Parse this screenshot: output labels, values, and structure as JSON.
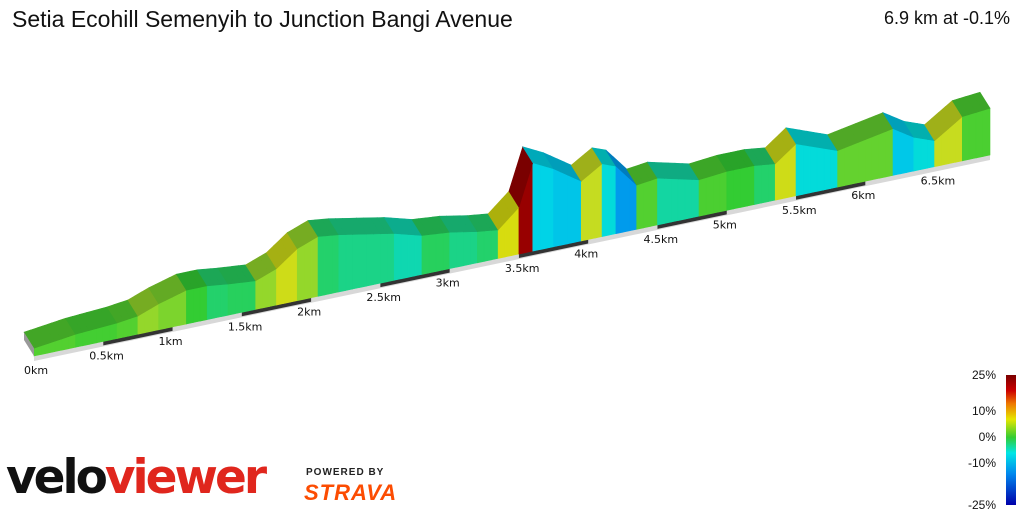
{
  "header": {
    "title": "Setia Ecohill Semenyih to Junction Bangi Avenue",
    "summary": "6.9 km at -0.1%"
  },
  "chart_data": {
    "type": "area",
    "title": "Setia Ecohill Semenyih to Junction Bangi Avenue",
    "distance_km": 6.9,
    "average_grade_percent": -0.1,
    "x_unit": "km",
    "tick_labels": [
      "0km",
      "0.5km",
      "1km",
      "1.5km",
      "2km",
      "2.5km",
      "3km",
      "3.5km",
      "4km",
      "4.5km",
      "5km",
      "5.5km",
      "6km",
      "6.5km"
    ],
    "tick_values": [
      0,
      0.5,
      1,
      1.5,
      2,
      2.5,
      3,
      3.5,
      4,
      4.5,
      5,
      5.5,
      6,
      6.5
    ],
    "series": [
      {
        "x": [
          0,
          0.3,
          0.6,
          0.75,
          0.9,
          1.1,
          1.25,
          1.4,
          1.6,
          1.75,
          1.9,
          2.05,
          2.2,
          2.4,
          2.6,
          2.8,
          3.0,
          3.2,
          3.35,
          3.5,
          3.6,
          3.75,
          3.95,
          4.1,
          4.2,
          4.35,
          4.5,
          4.65,
          4.8,
          5.0,
          5.2,
          5.35,
          5.5,
          5.65,
          5.8,
          6.0,
          6.2,
          6.35,
          6.5,
          6.7,
          6.9
        ],
        "y": [
          3,
          5,
          6,
          7,
          10,
          13,
          13,
          12,
          11,
          14,
          20,
          23,
          22,
          20,
          18,
          15,
          14,
          12,
          11,
          18,
          34,
          30,
          23,
          28,
          26,
          17,
          18,
          16,
          14,
          15,
          15,
          14,
          20,
          17,
          14,
          16,
          18,
          13,
          10,
          17,
          18
        ]
      }
    ],
    "grade_scale": {
      "labels": [
        "25%",
        "10%",
        "0%",
        "-10%",
        "-25%"
      ],
      "values": [
        25,
        10,
        0,
        -10,
        -25
      ]
    }
  },
  "branding": {
    "logo_part1": "velo",
    "logo_part2": "viewer",
    "powered_by": "POWERED BY",
    "strava": "STRAVA"
  }
}
